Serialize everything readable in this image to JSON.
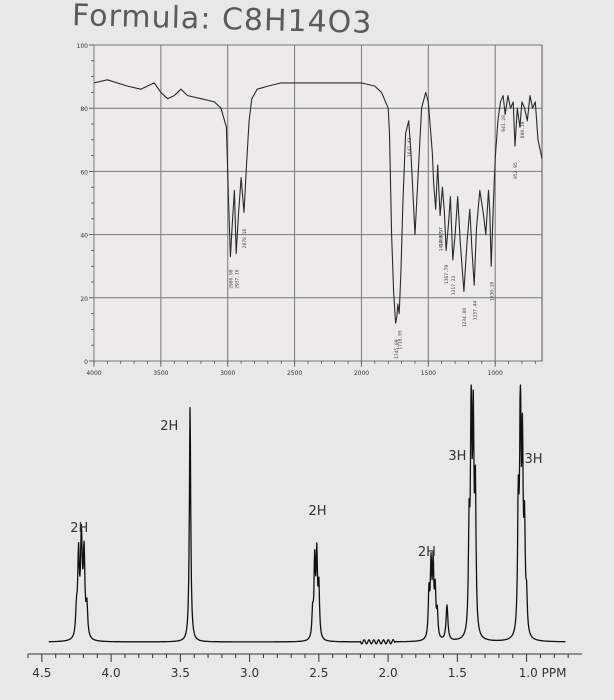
{
  "formula": "Formula: C8H14O3",
  "chart_data": [
    {
      "type": "line",
      "ylim": [
        0,
        100
      ],
      "xlim": [
        4000,
        650
      ],
      "x_ticks": [
        "4000",
        "3500",
        "3000",
        "2500",
        "2000",
        "1500",
        "1000"
      ],
      "y_ticks": [
        "0",
        "20",
        "40",
        "60",
        "80",
        "100"
      ],
      "grid": true,
      "peak_labels": [
        {
          "x": 2980.98,
          "label": "2980.98"
        },
        {
          "x": 2937.16,
          "label": "2937.16"
        },
        {
          "x": 2878.18,
          "label": "2878.18"
        },
        {
          "x": 1745.09,
          "label": "1745.09"
        },
        {
          "x": 1718.05,
          "label": "1718.05"
        },
        {
          "x": 1647.42,
          "label": "1647.42"
        },
        {
          "x": 1408.97,
          "label": "1408.97"
        },
        {
          "x": 1412.07,
          "label": "1412.07"
        },
        {
          "x": 1367.79,
          "label": "1367.79"
        },
        {
          "x": 1317.23,
          "label": "1317.23"
        },
        {
          "x": 1234.08,
          "label": "1234.08"
        },
        {
          "x": 1157.44,
          "label": "1157.44"
        },
        {
          "x": 1030.18,
          "label": "1030.18"
        },
        {
          "x": 941.28,
          "label": "941.28"
        },
        {
          "x": 852.95,
          "label": "852.95"
        },
        {
          "x": 800.19,
          "label": "800.19"
        }
      ],
      "series": [
        {
          "x": [
            4000,
            3900,
            3750,
            3650,
            3550,
            3500,
            3450,
            3400,
            3350,
            3300,
            3200,
            3100,
            3050,
            3010,
            2995,
            2980,
            2965,
            2950,
            2937,
            2920,
            2900,
            2878,
            2860,
            2840,
            2820,
            2780,
            2700,
            2600,
            2500,
            2400,
            2300,
            2200,
            2100,
            2000,
            1900,
            1850,
            1800,
            1790,
            1775,
            1760,
            1745,
            1735,
            1728,
            1718,
            1705,
            1690,
            1670,
            1647,
            1630,
            1600,
            1575,
            1550,
            1520,
            1500,
            1470,
            1460,
            1445,
            1430,
            1412,
            1395,
            1380,
            1367,
            1350,
            1335,
            1317,
            1300,
            1280,
            1260,
            1234,
            1210,
            1190,
            1175,
            1157,
            1140,
            1115,
            1090,
            1070,
            1050,
            1040,
            1030,
            1015,
            1000,
            980,
            960,
            941,
            925,
            905,
            885,
            865,
            852,
            835,
            815,
            800,
            780,
            760,
            740,
            720,
            700,
            680,
            650
          ],
          "y": [
            88,
            89,
            87,
            86,
            88,
            85,
            83,
            84,
            86,
            84,
            83,
            82,
            80,
            74,
            52,
            33,
            44,
            54,
            34,
            46,
            58,
            47,
            62,
            76,
            83,
            86,
            87,
            88,
            88,
            88,
            88,
            88,
            88,
            88,
            87,
            85,
            80,
            72,
            40,
            22,
            12,
            14,
            18,
            15,
            28,
            50,
            72,
            76,
            66,
            40,
            60,
            80,
            85,
            82,
            66,
            56,
            48,
            62,
            46,
            55,
            47,
            35,
            43,
            52,
            32,
            40,
            52,
            37,
            22,
            38,
            48,
            36,
            24,
            42,
            54,
            47,
            40,
            54,
            47,
            30,
            48,
            64,
            76,
            82,
            84,
            78,
            84,
            80,
            82,
            68,
            80,
            74,
            82,
            80,
            76,
            84,
            80,
            82,
            70,
            64
          ]
        }
      ]
    },
    {
      "type": "line",
      "xlabel": "PPM",
      "xlim": [
        4.6,
        0.6
      ],
      "x_ticks": [
        "4.5",
        "4.0",
        "3.5",
        "3.0",
        "2.5",
        "2.0",
        "1.5",
        "1.0 PPM"
      ],
      "x_tick_values": [
        4.5,
        4.0,
        3.5,
        3.0,
        2.5,
        2.0,
        1.5,
        1.0
      ],
      "integration_labels": [
        {
          "ppm": 4.23,
          "label": "2H"
        },
        {
          "ppm": 3.58,
          "label": "2H"
        },
        {
          "ppm": 2.51,
          "label": "2H"
        },
        {
          "ppm": 1.72,
          "label": "2H"
        },
        {
          "ppm": 1.5,
          "label": "3H"
        },
        {
          "ppm": 0.95,
          "label": "3H"
        }
      ],
      "peaks": [
        {
          "ppm": 4.21,
          "h": 0.06,
          "w": 0.01
        },
        {
          "ppm": 4.235,
          "h": 0.32,
          "w": 0.007
        },
        {
          "ppm": 4.215,
          "h": 0.34,
          "w": 0.007
        },
        {
          "ppm": 4.195,
          "h": 0.32,
          "w": 0.007
        },
        {
          "ppm": 4.175,
          "h": 0.12,
          "w": 0.007
        },
        {
          "ppm": 4.25,
          "h": 0.1,
          "w": 0.007
        },
        {
          "ppm": 3.43,
          "h": 0.93,
          "w": 0.006
        },
        {
          "ppm": 2.545,
          "h": 0.1,
          "w": 0.006
        },
        {
          "ppm": 2.53,
          "h": 0.3,
          "w": 0.006
        },
        {
          "ppm": 2.515,
          "h": 0.32,
          "w": 0.006
        },
        {
          "ppm": 2.5,
          "h": 0.2,
          "w": 0.006
        },
        {
          "ppm": 1.705,
          "h": 0.18,
          "w": 0.006
        },
        {
          "ppm": 1.69,
          "h": 0.28,
          "w": 0.006
        },
        {
          "ppm": 1.675,
          "h": 0.28,
          "w": 0.006
        },
        {
          "ppm": 1.66,
          "h": 0.18,
          "w": 0.006
        },
        {
          "ppm": 1.645,
          "h": 0.1,
          "w": 0.006
        },
        {
          "ppm": 1.575,
          "h": 0.14,
          "w": 0.008
        },
        {
          "ppm": 1.415,
          "h": 0.4,
          "w": 0.006
        },
        {
          "ppm": 1.4,
          "h": 0.92,
          "w": 0.006
        },
        {
          "ppm": 1.385,
          "h": 0.78,
          "w": 0.006
        },
        {
          "ppm": 1.37,
          "h": 0.55,
          "w": 0.006
        },
        {
          "ppm": 1.06,
          "h": 0.5,
          "w": 0.006
        },
        {
          "ppm": 1.045,
          "h": 0.92,
          "w": 0.006
        },
        {
          "ppm": 1.03,
          "h": 0.7,
          "w": 0.006
        },
        {
          "ppm": 1.015,
          "h": 0.4,
          "w": 0.006
        },
        {
          "ppm": 1.0,
          "h": 0.14,
          "w": 0.006
        }
      ]
    }
  ]
}
